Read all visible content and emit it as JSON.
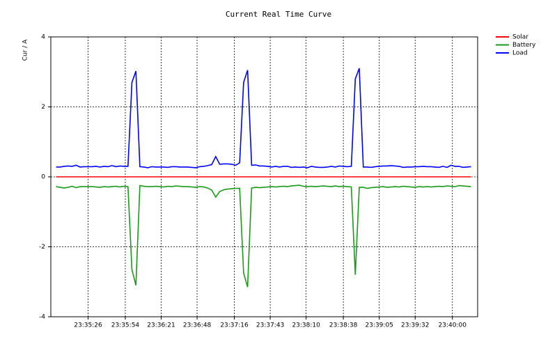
{
  "chart_data": {
    "type": "line",
    "title": "Current Real Time Curve",
    "y_label": "Cur / A",
    "x": [
      84902,
      84905,
      84908,
      84911,
      84914,
      84917,
      84920,
      84923,
      84926,
      84929,
      84932,
      84935,
      84938,
      84941,
      84944,
      84947,
      84950,
      84953,
      84956,
      84959,
      84962,
      84965,
      84968,
      84971,
      84974,
      84977,
      84980,
      84983,
      84986,
      84989,
      84992,
      84995,
      84998,
      85001,
      85004,
      85007,
      85010,
      85013,
      85016,
      85019,
      85022,
      85025,
      85028,
      85031,
      85034,
      85037,
      85040,
      85043,
      85046,
      85049,
      85052,
      85055,
      85058,
      85061,
      85064,
      85067,
      85070,
      85073,
      85076,
      85079,
      85082,
      85085,
      85088,
      85091,
      85094,
      85097,
      85100,
      85103,
      85106,
      85109,
      85112,
      85115,
      85118,
      85121,
      85124,
      85127,
      85130,
      85133,
      85136,
      85139,
      85142,
      85145,
      85148,
      85151,
      85154,
      85157,
      85160,
      85163,
      85166,
      85169,
      85172,
      85175,
      85178,
      85181,
      85184,
      85187,
      85190,
      85193,
      85196,
      85199,
      85202,
      85205,
      85208,
      85211,
      85214
    ],
    "series": [
      {
        "name": "Solar",
        "color": "#ff0000",
        "values": [
          0,
          0,
          0,
          0,
          0,
          0,
          0,
          0,
          0,
          0,
          0,
          0,
          0,
          0,
          0,
          0,
          0,
          0,
          0,
          0,
          0,
          0,
          0,
          0,
          0,
          0,
          0,
          0,
          0,
          0,
          0,
          0,
          0,
          0,
          0,
          0,
          0,
          0,
          0,
          0,
          0,
          0,
          0,
          0,
          0,
          0,
          0,
          0,
          0,
          0,
          0,
          0,
          0,
          0,
          0,
          0,
          0,
          0,
          0,
          0,
          0,
          0,
          0,
          0,
          0,
          0,
          0,
          0,
          0,
          0,
          0,
          0,
          0,
          0,
          0,
          0,
          0,
          0,
          0,
          0,
          0,
          0,
          0,
          0,
          0,
          0,
          0,
          0,
          0,
          0,
          0,
          0,
          0,
          0,
          0,
          0,
          0,
          0,
          0,
          0,
          0,
          0,
          0,
          0,
          0
        ]
      },
      {
        "name": "Battery",
        "color": "#1a9a1a",
        "values": [
          -0.28,
          -0.3,
          -0.32,
          -0.3,
          -0.27,
          -0.31,
          -0.28,
          -0.28,
          -0.28,
          -0.28,
          -0.29,
          -0.3,
          -0.28,
          -0.29,
          -0.28,
          -0.27,
          -0.29,
          -0.27,
          -0.28,
          -2.65,
          -3.1,
          -0.25,
          -0.27,
          -0.28,
          -0.28,
          -0.27,
          -0.28,
          -0.29,
          -0.27,
          -0.28,
          -0.26,
          -0.27,
          -0.28,
          -0.28,
          -0.29,
          -0.3,
          -0.28,
          -0.29,
          -0.32,
          -0.38,
          -0.58,
          -0.42,
          -0.37,
          -0.35,
          -0.34,
          -0.33,
          -0.33,
          -2.75,
          -3.15,
          -0.32,
          -0.3,
          -0.31,
          -0.3,
          -0.29,
          -0.28,
          -0.29,
          -0.28,
          -0.27,
          -0.28,
          -0.26,
          -0.25,
          -0.24,
          -0.27,
          -0.28,
          -0.27,
          -0.28,
          -0.27,
          -0.26,
          -0.27,
          -0.28,
          -0.26,
          -0.28,
          -0.27,
          -0.28,
          -0.29,
          -2.8,
          -0.3,
          -0.3,
          -0.33,
          -0.31,
          -0.3,
          -0.29,
          -0.28,
          -0.3,
          -0.29,
          -0.28,
          -0.29,
          -0.27,
          -0.28,
          -0.29,
          -0.3,
          -0.28,
          -0.29,
          -0.28,
          -0.29,
          -0.28,
          -0.27,
          -0.28,
          -0.26,
          -0.27,
          -0.28,
          -0.25,
          -0.26,
          -0.27,
          -0.28
        ]
      },
      {
        "name": "Load",
        "color": "#0000ff",
        "values": [
          0.28,
          0.28,
          0.3,
          0.31,
          0.3,
          0.33,
          0.28,
          0.29,
          0.29,
          0.29,
          0.3,
          0.28,
          0.3,
          0.29,
          0.32,
          0.29,
          0.31,
          0.3,
          0.3,
          2.7,
          3.02,
          0.29,
          0.28,
          0.26,
          0.29,
          0.28,
          0.28,
          0.28,
          0.27,
          0.29,
          0.29,
          0.28,
          0.28,
          0.28,
          0.27,
          0.26,
          0.29,
          0.3,
          0.32,
          0.35,
          0.58,
          0.36,
          0.37,
          0.37,
          0.36,
          0.33,
          0.4,
          2.7,
          3.05,
          0.33,
          0.34,
          0.31,
          0.31,
          0.3,
          0.28,
          0.3,
          0.28,
          0.3,
          0.3,
          0.27,
          0.28,
          0.27,
          0.28,
          0.26,
          0.3,
          0.28,
          0.27,
          0.27,
          0.28,
          0.3,
          0.28,
          0.31,
          0.3,
          0.29,
          0.3,
          2.8,
          3.1,
          0.28,
          0.28,
          0.27,
          0.29,
          0.3,
          0.31,
          0.31,
          0.32,
          0.31,
          0.3,
          0.27,
          0.28,
          0.28,
          0.29,
          0.29,
          0.3,
          0.29,
          0.29,
          0.28,
          0.27,
          0.3,
          0.27,
          0.33,
          0.3,
          0.3,
          0.27,
          0.28,
          0.29
        ]
      }
    ],
    "xlim": [
      84898,
      85219
    ],
    "xticks": [
      {
        "value": 84926,
        "label": "23:35:26"
      },
      {
        "value": 84954,
        "label": "23:35:54"
      },
      {
        "value": 84981,
        "label": "23:36:21"
      },
      {
        "value": 85008,
        "label": "23:36:48"
      },
      {
        "value": 85036,
        "label": "23:37:16"
      },
      {
        "value": 85063,
        "label": "23:37:43"
      },
      {
        "value": 85090,
        "label": "23:38:10"
      },
      {
        "value": 85118,
        "label": "23:38:38"
      },
      {
        "value": 85145,
        "label": "23:39:05"
      },
      {
        "value": 85172,
        "label": "23:39:32"
      },
      {
        "value": 85200,
        "label": "23:40:00"
      }
    ],
    "ylim": [
      -4,
      4
    ],
    "yticks": [
      -4,
      -2,
      0,
      2,
      4
    ],
    "grid": true,
    "legend": "top-right"
  }
}
